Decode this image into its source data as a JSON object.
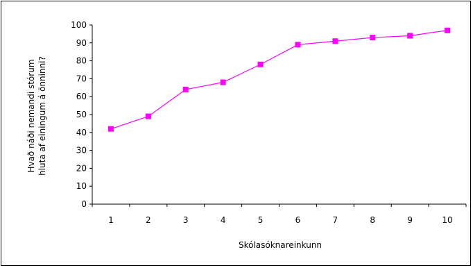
{
  "chart_data": {
    "type": "line",
    "title": "",
    "xlabel": "Skólasóknareinkunn",
    "ylabel_lines": [
      "Hvað náði nemandi stórum",
      "hluta af einingum á önninni?"
    ],
    "categories": [
      "1",
      "2",
      "3",
      "4",
      "5",
      "6",
      "7",
      "8",
      "9",
      "10"
    ],
    "yticks": [
      "0",
      "10",
      "20",
      "30",
      "40",
      "50",
      "60",
      "70",
      "80",
      "90",
      "100"
    ],
    "ylim": [
      0,
      100
    ],
    "grid": false,
    "legend": "none",
    "series": [
      {
        "color": "#ff00ff",
        "marker": "square",
        "values": [
          42,
          49,
          64,
          68,
          78,
          89,
          91,
          93,
          94,
          97
        ]
      }
    ]
  }
}
